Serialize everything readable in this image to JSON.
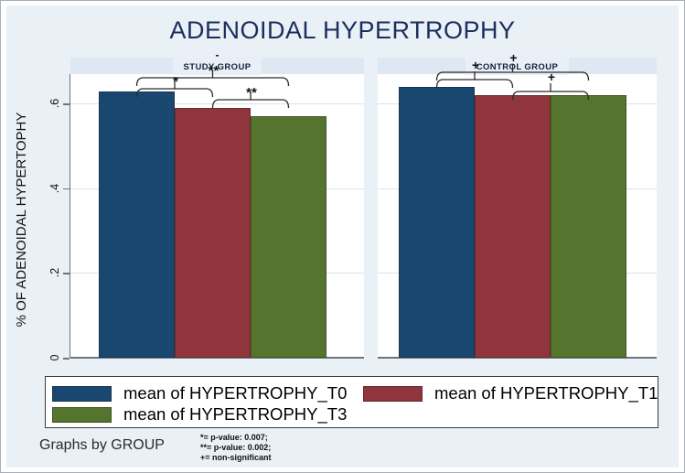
{
  "title": "ADENOIDAL HYPERTROPHY",
  "y_axis": {
    "title": "% OF ADENOIDAL HYPERTOPHY",
    "tick_labels": [
      "0",
      ".2",
      ".4",
      ".6"
    ]
  },
  "legend": {
    "items": [
      {
        "label": "mean of HYPERTROPHY_T0",
        "color": "#1a476f"
      },
      {
        "label": "mean of HYPERTROPHY_T1",
        "color": "#90353b"
      },
      {
        "label": "mean of HYPERTROPHY_T3",
        "color": "#55752f"
      }
    ]
  },
  "footer": {
    "graphs_by": "Graphs by GROUP",
    "notes": [
      "*= p-value: 0.007;",
      "**= p-value: 0.002;",
      "+= non-significant"
    ]
  },
  "colors": {
    "background": "#e9f0f6",
    "plot_background": "#ffffff",
    "header_strip": "#dee8f2",
    "title_text": "#1c2e5e",
    "axis_line": "#6b7480",
    "gridline": "#d9e4ee",
    "bar_navy": "#1a476f",
    "bar_maroon": "#90353b",
    "bar_green": "#55752f"
  },
  "chart_data": {
    "type": "bar",
    "title": "ADENOIDAL HYPERTROPHY",
    "ylabel": "% OF ADENOIDAL HYPERTOPHY",
    "ylim": [
      0,
      0.67
    ],
    "yticks": [
      0,
      0.2,
      0.4,
      0.6
    ],
    "grid": true,
    "legend_position": "bottom",
    "facet_by": "GROUP",
    "categories": [
      "mean of HYPERTROPHY_T0",
      "mean of HYPERTROPHY_T1",
      "mean of HYPERTROPHY_T3"
    ],
    "series_colors": [
      "#1a476f",
      "#90353b",
      "#55752f"
    ],
    "panels": [
      {
        "name": "STUDY GROUP",
        "values": [
          0.63,
          0.59,
          0.57
        ],
        "overmark": "-",
        "significance": [
          {
            "pair": [
              0,
              1
            ],
            "label": "*"
          },
          {
            "pair": [
              0,
              2
            ],
            "label": "**"
          },
          {
            "pair": [
              1,
              2
            ],
            "label": "**"
          }
        ]
      },
      {
        "name": "CONTROL GROUP",
        "values": [
          0.64,
          0.62,
          0.62
        ],
        "significance": [
          {
            "pair": [
              0,
              1
            ],
            "label": "+"
          },
          {
            "pair": [
              0,
              2
            ],
            "label": "+"
          },
          {
            "pair": [
              1,
              2
            ],
            "label": "+"
          }
        ]
      }
    ]
  }
}
